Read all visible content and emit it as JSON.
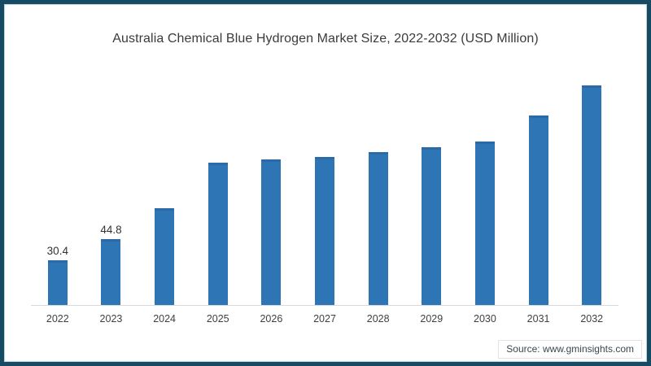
{
  "title": "Australia Chemical Blue Hydrogen Market Size, 2022-2032 (USD Million)",
  "source": "Source: www.gminsights.com",
  "colors": {
    "frame_border": "#174a63",
    "bar": "#2e75b6",
    "axis_line": "#d9d9d9",
    "title_text": "#3b3b3b",
    "tick_text": "#404040",
    "source_text": "#37474f"
  },
  "chart_data": {
    "type": "bar",
    "title": "Australia Chemical Blue Hydrogen Market Size, 2022-2032 (USD Million)",
    "categories": [
      "2022",
      "2023",
      "2024",
      "2025",
      "2026",
      "2027",
      "2028",
      "2029",
      "2030",
      "2031",
      "2032"
    ],
    "values": [
      30.4,
      44.8,
      66,
      97,
      99,
      101,
      104,
      107.5,
      111,
      129,
      149.5
    ],
    "data_labels": [
      "30.4",
      "44.8",
      "",
      "",
      "",
      "",
      "",
      "",
      "",
      "",
      ""
    ],
    "xlabel": "",
    "ylabel": "",
    "ylim": [
      0,
      155
    ],
    "grid": false,
    "legend_position": "none",
    "bar_color": "#2e75b6"
  }
}
